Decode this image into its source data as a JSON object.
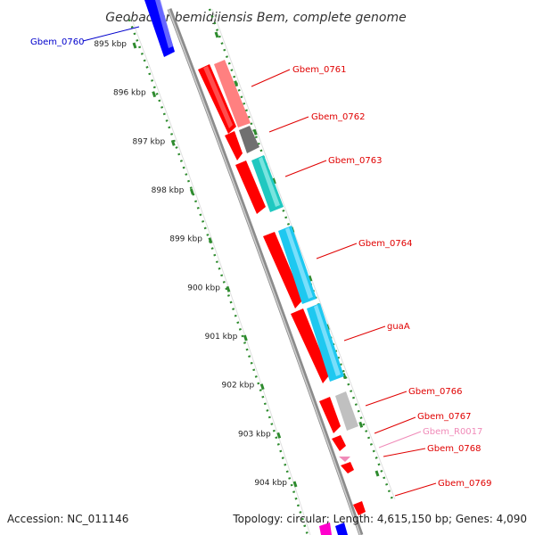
{
  "title": "Geobacter bemidjiensis Bem, complete genome",
  "footer": {
    "accession": "Accession: NC_011146",
    "summary": "Topology: circular; Length: 4,615,150 bp; Genes: 4,090"
  },
  "colors": {
    "backbone": "#8c8c8c",
    "tick": "#2e8b2e",
    "cds": "#ff0000",
    "cds_highlight": "#ff7f7f",
    "label_red": "#e00000",
    "label_blue": "#0000cc",
    "label_pink": "#f08ab8",
    "blue_feature": "#0000ff",
    "cyan_feature": "#1ec8f0",
    "teal_feature": "#20c8c0",
    "gray_feature": "#707070",
    "lightgray_feature": "#c0c0c0",
    "magenta_feature": "#ff00cc"
  },
  "scale": {
    "ticks": [
      {
        "label": "895 kbp",
        "value": 895
      },
      {
        "label": "896 kbp",
        "value": 896
      },
      {
        "label": "897 kbp",
        "value": 897
      },
      {
        "label": "898 kbp",
        "value": 898
      },
      {
        "label": "899 kbp",
        "value": 899
      },
      {
        "label": "900 kbp",
        "value": 900
      },
      {
        "label": "901 kbp",
        "value": 901
      },
      {
        "label": "902 kbp",
        "value": 902
      },
      {
        "label": "903 kbp",
        "value": 903
      },
      {
        "label": "904 kbp",
        "value": 904
      }
    ]
  },
  "genes": [
    {
      "label": "Gbem_0760",
      "color": "label_blue"
    },
    {
      "label": "Gbem_0761",
      "color": "label_red"
    },
    {
      "label": "Gbem_0762",
      "color": "label_red"
    },
    {
      "label": "Gbem_0763",
      "color": "label_red"
    },
    {
      "label": "Gbem_0764",
      "color": "label_red"
    },
    {
      "label": "guaA",
      "color": "label_red"
    },
    {
      "label": "Gbem_0766",
      "color": "label_red"
    },
    {
      "label": "Gbem_0767",
      "color": "label_red"
    },
    {
      "label": "Gbem_R0017",
      "color": "label_pink"
    },
    {
      "label": "Gbem_0768",
      "color": "label_red"
    },
    {
      "label": "Gbem_0769",
      "color": "label_red"
    }
  ]
}
